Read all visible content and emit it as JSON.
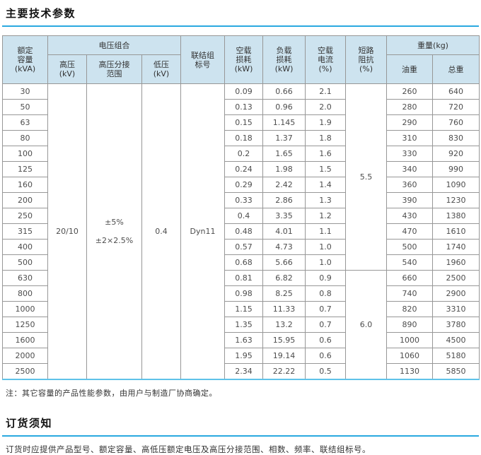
{
  "colors": {
    "accent_blue": "#2aa9e0",
    "header_bg": "#cde3ef",
    "table_bottom_border": "#5fc2e9",
    "border_gray": "#979797"
  },
  "main_section": {
    "title": "主要技术参数",
    "note": "注：其它容量的产品性能参数，由用户与制造厂协商确定。"
  },
  "ordering_section": {
    "title": "订货须知",
    "text": "订货时应提供产品型号、额定容量、高低压额定电压及高压分接范围、相数、频率、联结组标号。"
  },
  "table": {
    "headers": {
      "capacity": "额定\n容量\n(kVA)",
      "voltage_group": "电压组合",
      "hv": "高压\n(kV)",
      "tap_range": "高压分接\n范围",
      "lv": "低压\n(kV)",
      "vector_group": "联结组\n标号",
      "no_load_loss": "空载\n损耗\n(kW)",
      "load_loss": "负载\n损耗\n(kW)",
      "no_load_current": "空载\n电流\n(%)",
      "impedance": "短路\n阻抗\n(%)",
      "weight_group": "重量(kg)",
      "oil_weight": "油重",
      "total_weight": "总重"
    },
    "merged": {
      "hv": "20/10",
      "tap_range": "±5%\n±2×2.5%",
      "lv": "0.4",
      "vector_group": "Dyn11",
      "impedance_group1": "5.5",
      "impedance_group1_rowspan": 12,
      "impedance_group2": "6.0",
      "impedance_group2_rowspan": 7
    },
    "rows": [
      {
        "capacity": "30",
        "no_load_loss": "0.09",
        "load_loss": "0.66",
        "no_load_current": "2.1",
        "oil_weight": "260",
        "total_weight": "640"
      },
      {
        "capacity": "50",
        "no_load_loss": "0.13",
        "load_loss": "0.96",
        "no_load_current": "2.0",
        "oil_weight": "280",
        "total_weight": "720"
      },
      {
        "capacity": "63",
        "no_load_loss": "0.15",
        "load_loss": "1.145",
        "no_load_current": "1.9",
        "oil_weight": "290",
        "total_weight": "760"
      },
      {
        "capacity": "80",
        "no_load_loss": "0.18",
        "load_loss": "1.37",
        "no_load_current": "1.8",
        "oil_weight": "310",
        "total_weight": "830"
      },
      {
        "capacity": "100",
        "no_load_loss": "0.2",
        "load_loss": "1.65",
        "no_load_current": "1.6",
        "oil_weight": "330",
        "total_weight": "920"
      },
      {
        "capacity": "125",
        "no_load_loss": "0.24",
        "load_loss": "1.98",
        "no_load_current": "1.5",
        "oil_weight": "340",
        "total_weight": "990"
      },
      {
        "capacity": "160",
        "no_load_loss": "0.29",
        "load_loss": "2.42",
        "no_load_current": "1.4",
        "oil_weight": "360",
        "total_weight": "1090"
      },
      {
        "capacity": "200",
        "no_load_loss": "0.33",
        "load_loss": "2.86",
        "no_load_current": "1.3",
        "oil_weight": "390",
        "total_weight": "1230"
      },
      {
        "capacity": "250",
        "no_load_loss": "0.4",
        "load_loss": "3.35",
        "no_load_current": "1.2",
        "oil_weight": "430",
        "total_weight": "1380"
      },
      {
        "capacity": "315",
        "no_load_loss": "0.48",
        "load_loss": "4.01",
        "no_load_current": "1.1",
        "oil_weight": "470",
        "total_weight": "1610"
      },
      {
        "capacity": "400",
        "no_load_loss": "0.57",
        "load_loss": "4.73",
        "no_load_current": "1.0",
        "oil_weight": "500",
        "total_weight": "1740"
      },
      {
        "capacity": "500",
        "no_load_loss": "0.68",
        "load_loss": "5.66",
        "no_load_current": "1.0",
        "oil_weight": "540",
        "total_weight": "1960"
      },
      {
        "capacity": "630",
        "no_load_loss": "0.81",
        "load_loss": "6.82",
        "no_load_current": "0.9",
        "oil_weight": "660",
        "total_weight": "2500"
      },
      {
        "capacity": "800",
        "no_load_loss": "0.98",
        "load_loss": "8.25",
        "no_load_current": "0.8",
        "oil_weight": "740",
        "total_weight": "2900"
      },
      {
        "capacity": "1000",
        "no_load_loss": "1.15",
        "load_loss": "11.33",
        "no_load_current": "0.7",
        "oil_weight": "820",
        "total_weight": "3310"
      },
      {
        "capacity": "1250",
        "no_load_loss": "1.35",
        "load_loss": "13.2",
        "no_load_current": "0.7",
        "oil_weight": "890",
        "total_weight": "3780"
      },
      {
        "capacity": "1600",
        "no_load_loss": "1.63",
        "load_loss": "15.95",
        "no_load_current": "0.6",
        "oil_weight": "1000",
        "total_weight": "4500"
      },
      {
        "capacity": "2000",
        "no_load_loss": "1.95",
        "load_loss": "19.14",
        "no_load_current": "0.6",
        "oil_weight": "1060",
        "total_weight": "5180"
      },
      {
        "capacity": "2500",
        "no_load_loss": "2.34",
        "load_loss": "22.22",
        "no_load_current": "0.5",
        "oil_weight": "1130",
        "total_weight": "5850"
      }
    ]
  }
}
